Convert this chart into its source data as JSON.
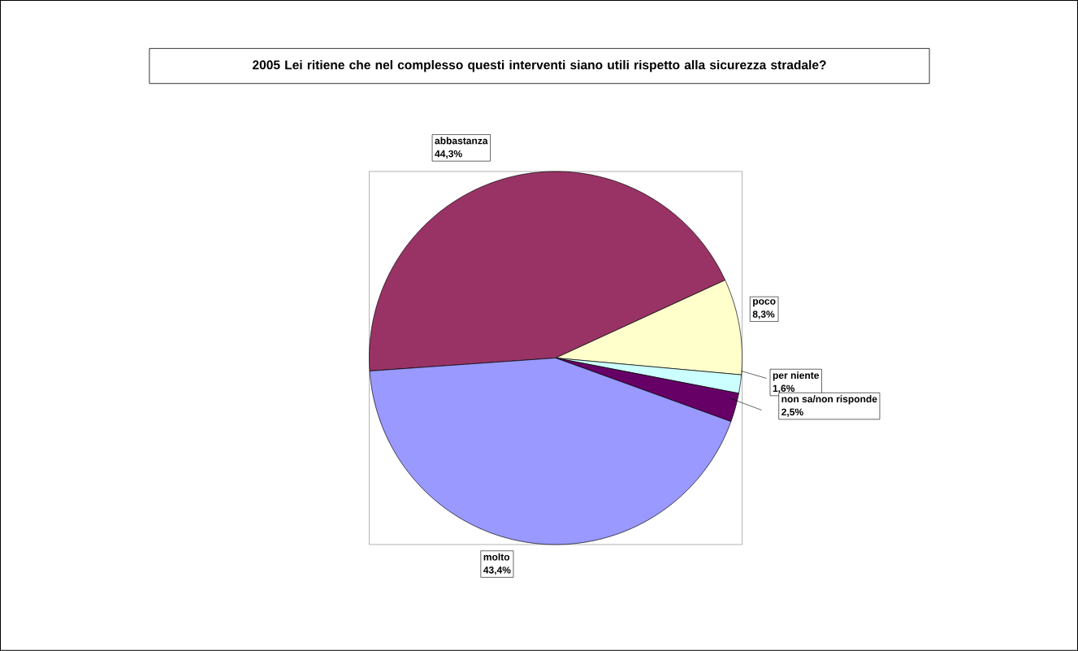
{
  "chart_data": {
    "type": "pie",
    "title": "2005 Lei ritiene che nel complesso questi interventi siano utili rispetto alla sicurezza stradale?",
    "categories": [
      "abbastanza",
      "poco",
      "per niente",
      "non sa/non risponde",
      "molto"
    ],
    "values": [
      44.3,
      8.3,
      1.6,
      2.5,
      43.4
    ],
    "colors": [
      "#993366",
      "#ffffcc",
      "#ccffff",
      "#660066",
      "#9999ff"
    ],
    "value_labels": [
      "44,3%",
      "8,3%",
      "1,6%",
      "2,5%",
      "43,4%"
    ]
  }
}
